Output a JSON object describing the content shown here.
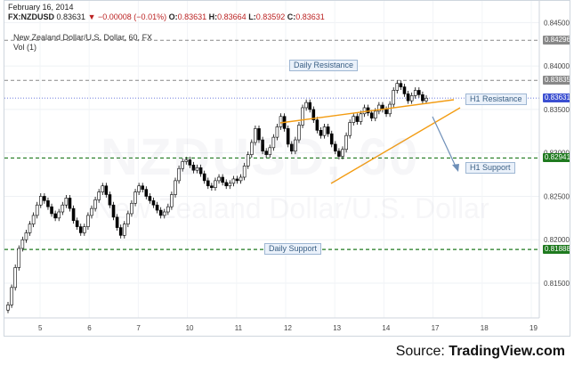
{
  "header": {
    "date": "February 16, 2014",
    "symbol": "FX:NZDUSD",
    "last": "0.83631",
    "change_arrow": "▼",
    "change": "−0.00008 (−0.01%)",
    "o_label": "O:",
    "o_value": "0.83631",
    "h_label": "H:",
    "h_value": "0.83664",
    "l_label": "L:",
    "l_value": "0.83592",
    "c_label": "C:",
    "c_value": "0.83631"
  },
  "subtitle": "New Zealand Dollar/U.S. Dollar, 60, FX",
  "volume_label": "Vol (1)",
  "watermark": {
    "symbol": "NZDUSD, 60",
    "name": "New Zealand Dollar/U.S. Dollar"
  },
  "source": {
    "prefix": "Source: ",
    "brand": "TradingView.com"
  },
  "annotations": {
    "daily_resistance": "Daily Resistance",
    "h1_resistance": "H1 Resistance",
    "h1_support": "H1 Support",
    "daily_support": "Daily Support"
  },
  "colors": {
    "up": "#ffffff",
    "down": "#000000",
    "resistance_line": "#888888",
    "support_line": "#1f7a1f",
    "trendline": "#f39c12",
    "arrow": "#6e8fb8",
    "current_price": "#3b4fd1"
  },
  "chart_data": {
    "type": "candlestick",
    "x_ticks": [
      "5",
      "6",
      "7",
      "10",
      "11",
      "12",
      "13",
      "14",
      "17",
      "18",
      "19"
    ],
    "y_ticks": [
      "0.84500",
      "0.84000",
      "0.83500",
      "0.83000",
      "0.82500",
      "0.82000",
      "0.81500"
    ],
    "ylim": [
      0.811,
      0.8475
    ],
    "price_labels": [
      "0.84296",
      "0.83835",
      "0.83631",
      "0.82941",
      "0.81888"
    ],
    "levels": {
      "daily_resistance": 0.84296,
      "h1_resistance": 0.83835,
      "current": 0.83631,
      "h1_support": 0.82941,
      "daily_support": 0.81888
    },
    "closes": [
      0.8125,
      0.8145,
      0.8168,
      0.819,
      0.82,
      0.8208,
      0.8218,
      0.8228,
      0.824,
      0.825,
      0.8245,
      0.8238,
      0.823,
      0.8225,
      0.8232,
      0.824,
      0.8248,
      0.8236,
      0.8222,
      0.8215,
      0.8208,
      0.8215,
      0.8228,
      0.8236,
      0.8246,
      0.8255,
      0.8262,
      0.8252,
      0.824,
      0.8226,
      0.8214,
      0.8205,
      0.8218,
      0.823,
      0.8242,
      0.8255,
      0.8262,
      0.8258,
      0.825,
      0.8245,
      0.824,
      0.8234,
      0.8228,
      0.8232,
      0.8238,
      0.8252,
      0.8268,
      0.8282,
      0.829,
      0.8292,
      0.8286,
      0.828,
      0.8283,
      0.8276,
      0.8268,
      0.8262,
      0.826,
      0.8268,
      0.8272,
      0.8266,
      0.8262,
      0.8265,
      0.827,
      0.8268,
      0.8272,
      0.8285,
      0.8298,
      0.8312,
      0.8328,
      0.8315,
      0.8302,
      0.8298,
      0.8306,
      0.8318,
      0.833,
      0.8342,
      0.8328,
      0.831,
      0.8302,
      0.8315,
      0.8332,
      0.8352,
      0.8358,
      0.835,
      0.8338,
      0.8326,
      0.832,
      0.833,
      0.8322,
      0.831,
      0.8302,
      0.8296,
      0.8304,
      0.832,
      0.8335,
      0.8342,
      0.8336,
      0.8345,
      0.8352,
      0.8346,
      0.834,
      0.8348,
      0.8355,
      0.835,
      0.8345,
      0.8356,
      0.8372,
      0.838,
      0.8376,
      0.8368,
      0.836,
      0.8366,
      0.8372,
      0.8367,
      0.836,
      0.8363
    ]
  }
}
